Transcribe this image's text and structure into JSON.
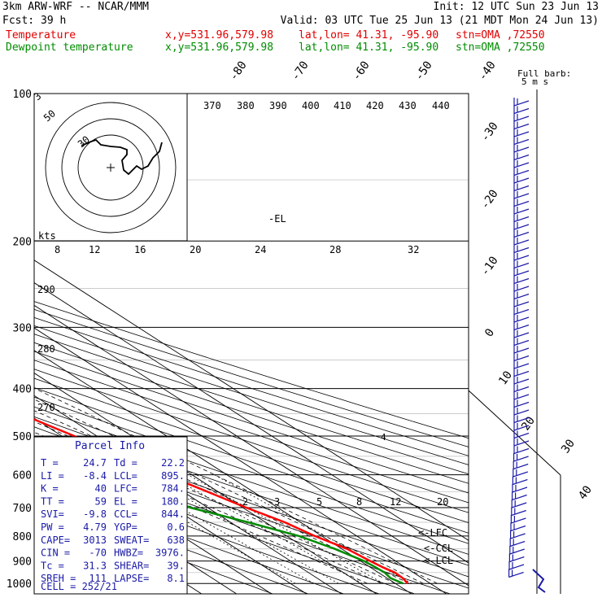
{
  "header": {
    "model": "3km ARW-WRF -- NCAR/MMM",
    "init": "Init: 12 UTC Sun 23 Jun 13",
    "fcst_label": "Fcst:",
    "fcst_value": "39 h",
    "valid": "Valid: 03 UTC Tue 25 Jun 13 (21 MDT Mon 24 Jun 13)",
    "temp_label": "Temperature",
    "dew_label": "Dewpoint temperature",
    "xy": "x,y=531.96,579.98",
    "latlon": "lat,lon= 41.31, -95.90",
    "stn": "stn=OMA ,72550"
  },
  "colors": {
    "temperature": "#ff0000",
    "dewpoint": "#008c00",
    "grid": "#000000"
  },
  "chart_data": {
    "type": "line",
    "title": "",
    "ylabel": "",
    "y_scale": "log-pressure",
    "ylim": [
      1000,
      100
    ],
    "xlim": [
      -40,
      40
    ],
    "pressure_ticks": [
      100,
      200,
      300,
      400,
      500,
      600,
      700,
      800,
      900,
      1000
    ],
    "pressure_tick_labels": [
      "100",
      "200",
      "300",
      "400",
      "500",
      "600",
      "700",
      "800",
      "900",
      "1000"
    ],
    "isotherm_labels": [
      "-80",
      "-70",
      "-60",
      "-50",
      "-40",
      "-30",
      "-20",
      "-10",
      "0",
      "10",
      "20",
      "30",
      "40"
    ],
    "theta_labels": [
      "370",
      "380",
      "390",
      "400",
      "410",
      "420",
      "430",
      "440",
      "290",
      "280",
      "270"
    ],
    "mixing_ratio_labels": [
      "2",
      "3",
      "5",
      "8",
      "12",
      "20"
    ],
    "series": [
      {
        "name": "Temperature",
        "points": [
          [
            1000,
            23.5
          ],
          [
            975,
            24.5
          ],
          [
            950,
            24.7
          ],
          [
            925,
            23.5
          ],
          [
            900,
            22.8
          ],
          [
            850,
            21.5
          ],
          [
            800,
            18.0
          ],
          [
            750,
            15.5
          ],
          [
            700,
            11.0
          ],
          [
            650,
            7.0
          ],
          [
            600,
            2.5
          ],
          [
            550,
            -2.0
          ],
          [
            500,
            -6.5
          ],
          [
            450,
            -12.0
          ],
          [
            400,
            -17.5
          ],
          [
            350,
            -23.5
          ],
          [
            300,
            -31.0
          ],
          [
            270,
            -36.5
          ],
          [
            250,
            -40.5
          ],
          [
            225,
            -45.5
          ],
          [
            200,
            -52.5
          ],
          [
            175,
            -57.0
          ],
          [
            150,
            -58.5
          ],
          [
            125,
            -60.0
          ],
          [
            110,
            -62.0
          ],
          [
            100,
            -64.0
          ]
        ]
      },
      {
        "name": "Dewpoint temperature",
        "points": [
          [
            1000,
            22.2
          ],
          [
            975,
            21.0
          ],
          [
            950,
            21.8
          ],
          [
            925,
            21.5
          ],
          [
            900,
            21.0
          ],
          [
            850,
            18.0
          ],
          [
            800,
            13.5
          ],
          [
            750,
            5.0
          ],
          [
            700,
            -5.0
          ],
          [
            650,
            -8.5
          ],
          [
            600,
            -11.5
          ],
          [
            550,
            -14.0
          ],
          [
            500,
            -20.0
          ],
          [
            450,
            -28.0
          ],
          [
            400,
            -36.0
          ],
          [
            350,
            -35.0
          ],
          [
            300,
            -44.5
          ],
          [
            250,
            -53.0
          ],
          [
            200,
            -62.5
          ],
          [
            175,
            -67.0
          ],
          [
            150,
            -72.0
          ],
          [
            125,
            -78.5
          ],
          [
            115,
            -82.0
          ],
          [
            110,
            -80.0
          ],
          [
            100,
            -78.0
          ]
        ]
      }
    ],
    "annotations": [
      "-EL",
      "<-LFC",
      "<-CCL",
      "<-LCL"
    ],
    "wind_label": "Full barb:",
    "wind_unit": "5 m s",
    "hodograph": {
      "units": "kts",
      "ring_labels": [
        "30",
        "50"
      ],
      "x_ticks": [
        "8",
        "12",
        "16",
        "20",
        "24",
        "28",
        "32"
      ]
    },
    "parcel_info": {
      "title": "Parcel Info",
      "rows": [
        [
          "T  =",
          "24.7",
          "Td =",
          "22.2"
        ],
        [
          "LI =",
          "-8.4",
          "LCL=",
          "895."
        ],
        [
          "K  =",
          "40",
          "LFC=",
          "784."
        ],
        [
          "TT =",
          "59",
          "EL =",
          "180."
        ],
        [
          "SVI=",
          "-9.8",
          "CCL=",
          "844."
        ],
        [
          "PW =",
          "4.79",
          "YGP=",
          "0.6"
        ],
        [
          "CAPE=",
          "3013",
          "SWEAT=",
          "638"
        ],
        [
          "CIN =",
          "-70",
          "HWBZ=",
          "3976."
        ],
        [
          "Tc =",
          "31.3",
          "SHEAR=",
          "39."
        ],
        [
          "SREH =",
          "111",
          "LAPSE=",
          "8.1"
        ]
      ],
      "cell_label": "CELL = 252/21"
    }
  }
}
